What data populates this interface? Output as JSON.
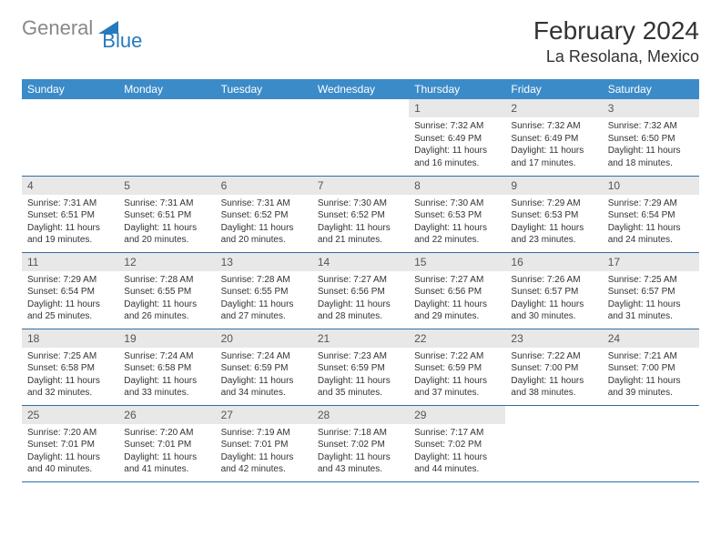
{
  "brand": {
    "part1": "General",
    "part2": "Blue",
    "color_gray": "#888888",
    "color_blue": "#2779bd"
  },
  "title": "February 2024",
  "location": "La Resolana, Mexico",
  "header_bg": "#3b8bc8",
  "daynum_bg": "#e8e8e8",
  "rule_color": "#2f6fa3",
  "day_headers": [
    "Sunday",
    "Monday",
    "Tuesday",
    "Wednesday",
    "Thursday",
    "Friday",
    "Saturday"
  ],
  "weeks": [
    [
      null,
      null,
      null,
      null,
      {
        "n": "1",
        "sr": "7:32 AM",
        "ss": "6:49 PM",
        "dl": "11 hours and 16 minutes."
      },
      {
        "n": "2",
        "sr": "7:32 AM",
        "ss": "6:49 PM",
        "dl": "11 hours and 17 minutes."
      },
      {
        "n": "3",
        "sr": "7:32 AM",
        "ss": "6:50 PM",
        "dl": "11 hours and 18 minutes."
      }
    ],
    [
      {
        "n": "4",
        "sr": "7:31 AM",
        "ss": "6:51 PM",
        "dl": "11 hours and 19 minutes."
      },
      {
        "n": "5",
        "sr": "7:31 AM",
        "ss": "6:51 PM",
        "dl": "11 hours and 20 minutes."
      },
      {
        "n": "6",
        "sr": "7:31 AM",
        "ss": "6:52 PM",
        "dl": "11 hours and 20 minutes."
      },
      {
        "n": "7",
        "sr": "7:30 AM",
        "ss": "6:52 PM",
        "dl": "11 hours and 21 minutes."
      },
      {
        "n": "8",
        "sr": "7:30 AM",
        "ss": "6:53 PM",
        "dl": "11 hours and 22 minutes."
      },
      {
        "n": "9",
        "sr": "7:29 AM",
        "ss": "6:53 PM",
        "dl": "11 hours and 23 minutes."
      },
      {
        "n": "10",
        "sr": "7:29 AM",
        "ss": "6:54 PM",
        "dl": "11 hours and 24 minutes."
      }
    ],
    [
      {
        "n": "11",
        "sr": "7:29 AM",
        "ss": "6:54 PM",
        "dl": "11 hours and 25 minutes."
      },
      {
        "n": "12",
        "sr": "7:28 AM",
        "ss": "6:55 PM",
        "dl": "11 hours and 26 minutes."
      },
      {
        "n": "13",
        "sr": "7:28 AM",
        "ss": "6:55 PM",
        "dl": "11 hours and 27 minutes."
      },
      {
        "n": "14",
        "sr": "7:27 AM",
        "ss": "6:56 PM",
        "dl": "11 hours and 28 minutes."
      },
      {
        "n": "15",
        "sr": "7:27 AM",
        "ss": "6:56 PM",
        "dl": "11 hours and 29 minutes."
      },
      {
        "n": "16",
        "sr": "7:26 AM",
        "ss": "6:57 PM",
        "dl": "11 hours and 30 minutes."
      },
      {
        "n": "17",
        "sr": "7:25 AM",
        "ss": "6:57 PM",
        "dl": "11 hours and 31 minutes."
      }
    ],
    [
      {
        "n": "18",
        "sr": "7:25 AM",
        "ss": "6:58 PM",
        "dl": "11 hours and 32 minutes."
      },
      {
        "n": "19",
        "sr": "7:24 AM",
        "ss": "6:58 PM",
        "dl": "11 hours and 33 minutes."
      },
      {
        "n": "20",
        "sr": "7:24 AM",
        "ss": "6:59 PM",
        "dl": "11 hours and 34 minutes."
      },
      {
        "n": "21",
        "sr": "7:23 AM",
        "ss": "6:59 PM",
        "dl": "11 hours and 35 minutes."
      },
      {
        "n": "22",
        "sr": "7:22 AM",
        "ss": "6:59 PM",
        "dl": "11 hours and 37 minutes."
      },
      {
        "n": "23",
        "sr": "7:22 AM",
        "ss": "7:00 PM",
        "dl": "11 hours and 38 minutes."
      },
      {
        "n": "24",
        "sr": "7:21 AM",
        "ss": "7:00 PM",
        "dl": "11 hours and 39 minutes."
      }
    ],
    [
      {
        "n": "25",
        "sr": "7:20 AM",
        "ss": "7:01 PM",
        "dl": "11 hours and 40 minutes."
      },
      {
        "n": "26",
        "sr": "7:20 AM",
        "ss": "7:01 PM",
        "dl": "11 hours and 41 minutes."
      },
      {
        "n": "27",
        "sr": "7:19 AM",
        "ss": "7:01 PM",
        "dl": "11 hours and 42 minutes."
      },
      {
        "n": "28",
        "sr": "7:18 AM",
        "ss": "7:02 PM",
        "dl": "11 hours and 43 minutes."
      },
      {
        "n": "29",
        "sr": "7:17 AM",
        "ss": "7:02 PM",
        "dl": "11 hours and 44 minutes."
      },
      null,
      null
    ]
  ],
  "labels": {
    "sunrise": "Sunrise:",
    "sunset": "Sunset:",
    "daylight": "Daylight:"
  }
}
